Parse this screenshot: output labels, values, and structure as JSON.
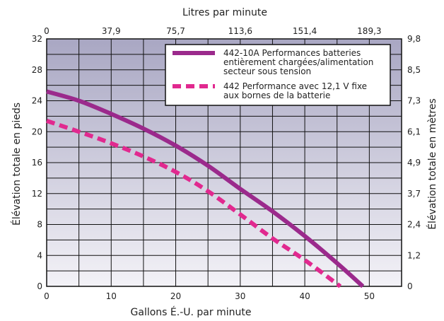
{
  "chart_data": {
    "type": "line",
    "xlabel": "Gallons É.-U. par minute",
    "ylabel": "Élévation totale en pieds",
    "x2label": "Litres par minute",
    "y2label": "Élévation totale en mètres",
    "xlim": [
      0,
      55
    ],
    "ylim": [
      0,
      32
    ],
    "x_ticks": [
      0,
      10,
      20,
      30,
      40,
      50
    ],
    "y_ticks": [
      0,
      4,
      8,
      12,
      16,
      20,
      24,
      28,
      32
    ],
    "x2_tick_labels": [
      "0",
      "37,9",
      "75,7",
      "113,6",
      "151,4",
      "189,3"
    ],
    "y2_tick_labels": [
      "0",
      "1,2",
      "2,4",
      "3,7",
      "4,9",
      "6,1",
      "7,3",
      "8,5",
      "9,8"
    ],
    "grid": true,
    "legend_position": "top-right",
    "series": [
      {
        "name": "442-10A Performances batteries entièrement chargées/alimentation secteur sous tension",
        "legend_lines": [
          "442-10A Performances batteries",
          "entièrement chargées/alimentation",
          "secteur sous tension"
        ],
        "style": "solid",
        "color": "#9b2a8c",
        "x": [
          0,
          5,
          10,
          15,
          20,
          25,
          30,
          35,
          40,
          45,
          49
        ],
        "y": [
          25.2,
          24.0,
          22.3,
          20.4,
          18.2,
          15.6,
          12.6,
          9.7,
          6.5,
          3.0,
          0
        ]
      },
      {
        "name": "442 Performance avec 12,1 V fixe aux bornes de la batterie",
        "legend_lines": [
          "442 Performance avec 12,1 V fixe",
          "aux bornes de la batterie"
        ],
        "style": "dashed",
        "color": "#e1298f",
        "x": [
          0,
          5,
          10,
          15,
          20,
          25,
          30,
          35,
          40,
          45.5
        ],
        "y": [
          21.4,
          20.0,
          18.5,
          16.8,
          14.8,
          12.3,
          9.3,
          6.2,
          3.4,
          0
        ]
      }
    ]
  }
}
